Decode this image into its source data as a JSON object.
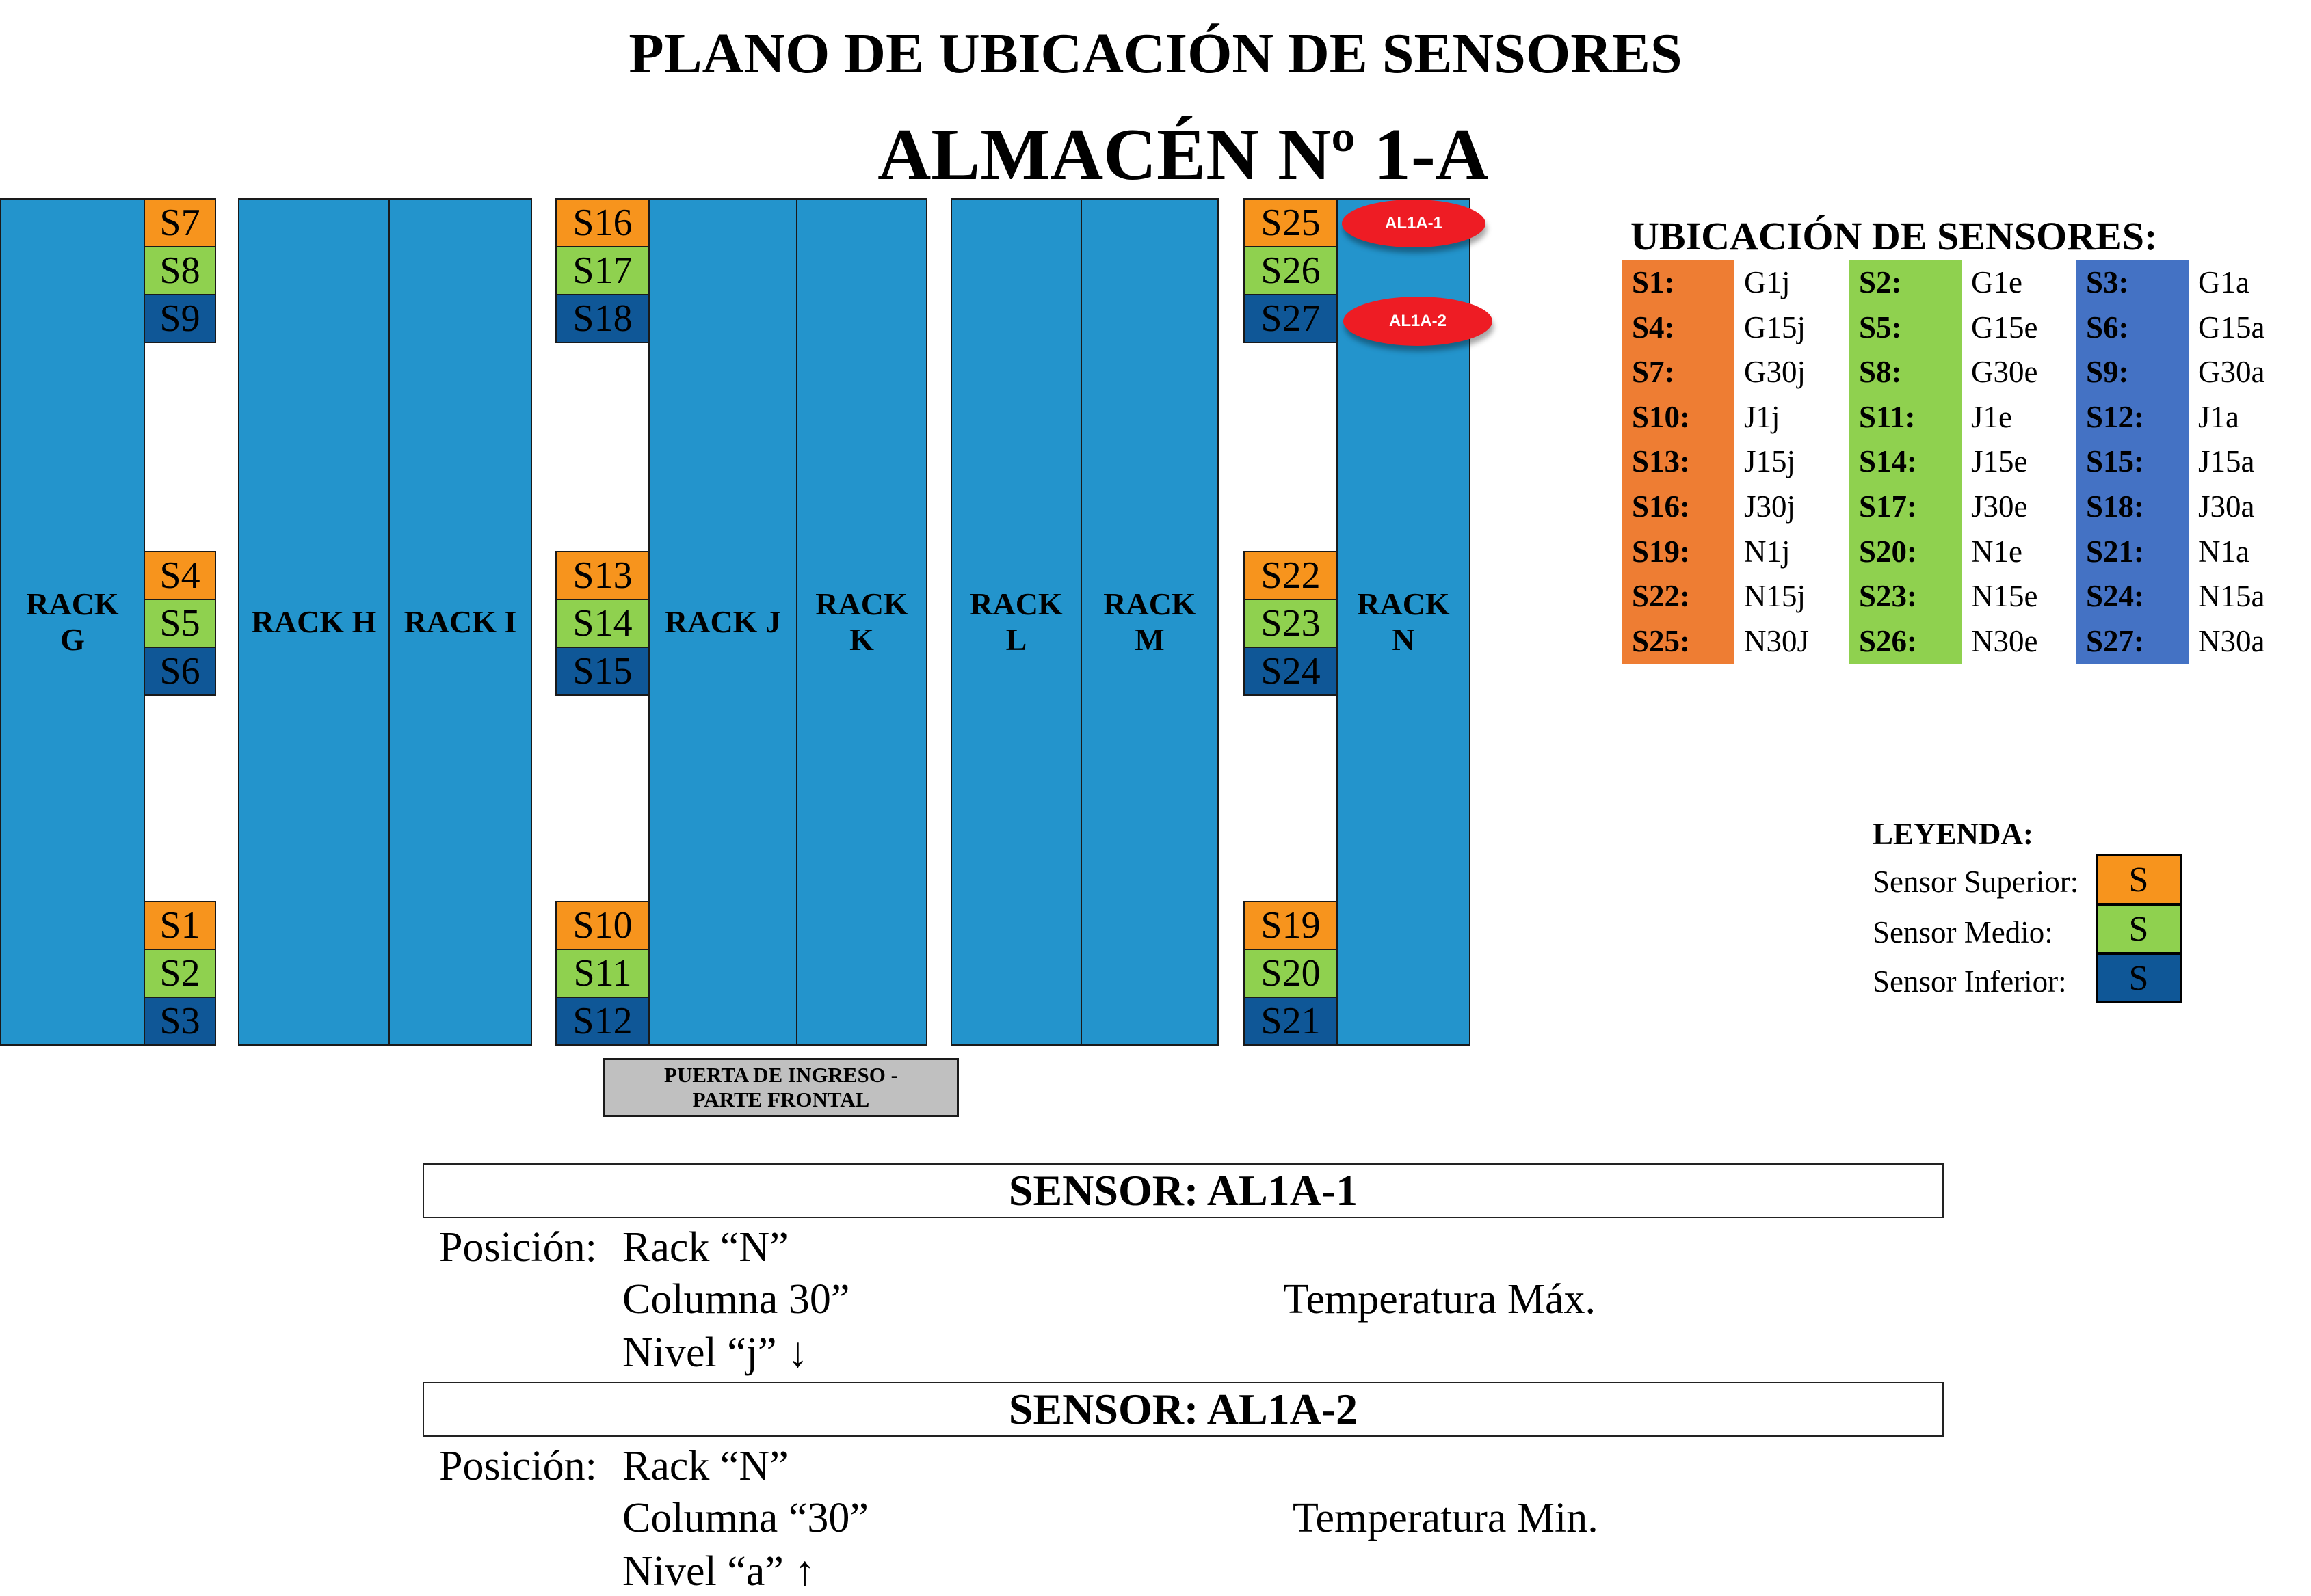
{
  "header": {
    "title": "PLANO DE UBICACIÓN DE SENSORES",
    "subtitle": "ALMACÉN Nº 1-A"
  },
  "racks": {
    "g": "RACK\nG",
    "h": "RACK H",
    "i": "RACK I",
    "j": "RACK J",
    "k": "RACK\nK",
    "l": "RACK\nL",
    "m": "RACK\nM",
    "n": "RACK\nN"
  },
  "sensor_labels": {
    "s1": "S1",
    "s2": "S2",
    "s3": "S3",
    "s4": "S4",
    "s5": "S5",
    "s6": "S6",
    "s7": "S7",
    "s8": "S8",
    "s9": "S9",
    "s10": "S10",
    "s11": "S11",
    "s12": "S12",
    "s13": "S13",
    "s14": "S14",
    "s15": "S15",
    "s16": "S16",
    "s17": "S17",
    "s18": "S18",
    "s19": "S19",
    "s20": "S20",
    "s21": "S21",
    "s22": "S22",
    "s23": "S23",
    "s24": "S24",
    "s25": "S25",
    "s26": "S26",
    "s27": "S27"
  },
  "alarms": {
    "a1": "AL1A-1",
    "a2": "AL1A-2"
  },
  "door": "PUERTA DE INGRESO - PARTE FRONTAL",
  "ubicacion": {
    "title": "UBICACIÓN DE SENSORES:",
    "rows": [
      [
        {
          "code": "S1:",
          "loc": "G1j"
        },
        {
          "code": "S2:",
          "loc": "G1e"
        },
        {
          "code": "S3:",
          "loc": "G1a"
        }
      ],
      [
        {
          "code": "S4:",
          "loc": "G15j"
        },
        {
          "code": "S5:",
          "loc": "G15e"
        },
        {
          "code": "S6:",
          "loc": "G15a"
        }
      ],
      [
        {
          "code": "S7:",
          "loc": "G30j"
        },
        {
          "code": "S8:",
          "loc": "G30e"
        },
        {
          "code": "S9:",
          "loc": "G30a"
        }
      ],
      [
        {
          "code": "S10:",
          "loc": "J1j"
        },
        {
          "code": "S11:",
          "loc": "J1e"
        },
        {
          "code": "S12:",
          "loc": "J1a"
        }
      ],
      [
        {
          "code": "S13:",
          "loc": "J15j"
        },
        {
          "code": "S14:",
          "loc": "J15e"
        },
        {
          "code": "S15:",
          "loc": "J15a"
        }
      ],
      [
        {
          "code": "S16:",
          "loc": "J30j"
        },
        {
          "code": "S17:",
          "loc": "J30e"
        },
        {
          "code": "S18:",
          "loc": "J30a"
        }
      ],
      [
        {
          "code": "S19:",
          "loc": "N1j"
        },
        {
          "code": "S20:",
          "loc": "N1e"
        },
        {
          "code": "S21:",
          "loc": "N1a"
        }
      ],
      [
        {
          "code": "S22:",
          "loc": "N15j"
        },
        {
          "code": "S23:",
          "loc": "N15e"
        },
        {
          "code": "S24:",
          "loc": "N15a"
        }
      ],
      [
        {
          "code": "S25:",
          "loc": "N30J"
        },
        {
          "code": "S26:",
          "loc": "N30e"
        },
        {
          "code": "S27:",
          "loc": "N30a"
        }
      ]
    ]
  },
  "leyenda": {
    "title": "LEYENDA:",
    "superior": "Sensor Superior:",
    "medio": "Sensor Medio:",
    "inferior": "Sensor Inferior:",
    "symbol": "S"
  },
  "sensor1": {
    "title": "SENSOR: AL1A-1",
    "posicion": "Posición:",
    "rack": "Rack “N”",
    "columna": "Columna 30”",
    "nivel": "Nivel “j” ↓",
    "temp": "Temperatura Máx."
  },
  "sensor2": {
    "title": "SENSOR: AL1A-2",
    "posicion": "Posición:",
    "rack": "Rack “N”",
    "columna": "Columna “30”",
    "nivel": "Nivel “a” ↑",
    "temp": "Temperatura Min."
  },
  "colors": {
    "rack": "#2394CC",
    "superior": "#F7941D",
    "medio": "#8FD14F",
    "inferior": "#0F5797",
    "alarm": "#EE1C24",
    "table_superior": "#EE7D33",
    "table_inferior": "#4472C4",
    "door": "#C0C0C0"
  }
}
